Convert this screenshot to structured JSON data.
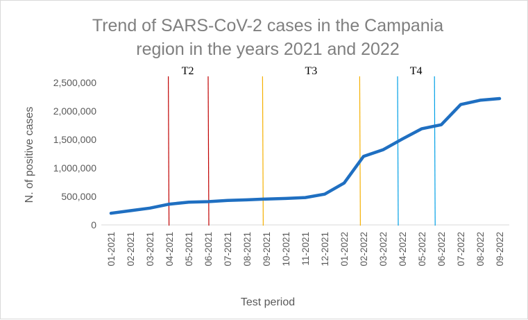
{
  "chart_data": {
    "type": "line",
    "title_lines": [
      "Trend of SARS-CoV-2 cases in the Campania",
      "region in the years 2021 and 2022"
    ],
    "xlabel": "Test period",
    "ylabel": "N. of positive cases",
    "categories": [
      "01-2021",
      "02-2021",
      "03-2021",
      "04-2021",
      "05-2021",
      "06-2021",
      "07-2021",
      "08-2021",
      "09-2021",
      "10-2021",
      "11-2021",
      "12-2021",
      "01-2022",
      "02-2022",
      "03-2022",
      "04-2022",
      "05-2022",
      "06-2022",
      "07-2022",
      "08-2022",
      "09-2022"
    ],
    "series": [
      {
        "color": "#1f6fc1",
        "values": [
          205000,
          250000,
          295000,
          365000,
          400000,
          408000,
          430000,
          440000,
          455000,
          465000,
          480000,
          540000,
          735000,
          1205000,
          1320000,
          1510000,
          1690000,
          1760000,
          2115000,
          2190000,
          2220000
        ]
      }
    ],
    "ylim": [
      0,
      2500000
    ],
    "yticks": [
      0,
      500000,
      1000000,
      1500000,
      2000000,
      2500000
    ],
    "ytick_labels": [
      "0",
      "500,000",
      "1,000,000",
      "1,500,000",
      "2,000,000",
      "2,500,000"
    ],
    "grid": false,
    "vertical_markers": [
      {
        "x_index": 2.95,
        "color": "#c00000"
      },
      {
        "x_index": 5.0,
        "color": "#c00000"
      },
      {
        "x_index": 7.8,
        "color": "#f5b000"
      },
      {
        "x_index": 12.8,
        "color": "#f5b000"
      },
      {
        "x_index": 14.75,
        "color": "#00a0e6"
      },
      {
        "x_index": 16.65,
        "color": "#00a0e6"
      }
    ],
    "period_labels": [
      {
        "text": "T2",
        "x_index": 3.95
      },
      {
        "text": "T3",
        "x_index": 10.3
      },
      {
        "text": "T4",
        "x_index": 15.7
      }
    ]
  }
}
